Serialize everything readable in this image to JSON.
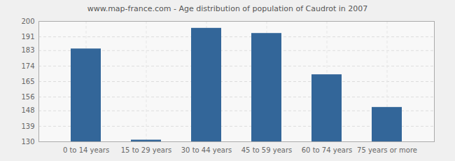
{
  "chart_data": {
    "type": "bar",
    "title": "www.map-france.com - Age distribution of population of Caudrot in 2007",
    "categories": [
      "0 to 14 years",
      "15 to 29 years",
      "30 to 44 years",
      "45 to 59 years",
      "60 to 74 years",
      "75 years or more"
    ],
    "values": [
      184,
      131,
      196,
      193,
      169,
      150
    ],
    "color": "#336699",
    "ylim": [
      130,
      200
    ],
    "yticks": [
      130,
      139,
      148,
      156,
      165,
      174,
      183,
      191,
      200
    ],
    "grid": true
  }
}
